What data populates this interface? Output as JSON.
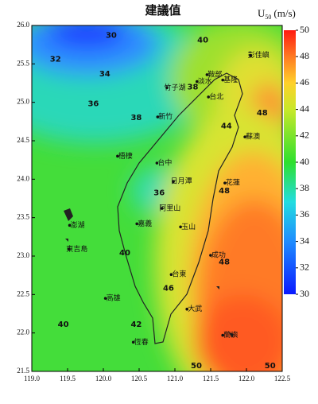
{
  "chart_data": {
    "type": "contour",
    "title": "建議值",
    "colorbar_label": {
      "main": "U",
      "sub": "50",
      "unit": "(m/s)"
    },
    "xlim": [
      119.0,
      122.5
    ],
    "xticks": [
      {
        "value": 119.0,
        "label": "119.0"
      },
      {
        "value": 119.5,
        "label": "119.5"
      },
      {
        "value": 120.0,
        "label": "120.0"
      },
      {
        "value": 120.5,
        "label": "120.5"
      },
      {
        "value": 121.0,
        "label": "121.0"
      },
      {
        "value": 121.5,
        "label": "121.5"
      },
      {
        "value": 122.0,
        "label": "122.0"
      },
      {
        "value": 122.5,
        "label": "122.5"
      }
    ],
    "ylim": [
      21.5,
      26.0
    ],
    "yticks": [
      {
        "value": 21.5,
        "label": "21.5"
      },
      {
        "value": 22.0,
        "label": "22.0"
      },
      {
        "value": 22.5,
        "label": "22.5"
      },
      {
        "value": 23.0,
        "label": "23.0"
      },
      {
        "value": 23.5,
        "label": "23.5"
      },
      {
        "value": 24.0,
        "label": "24.0"
      },
      {
        "value": 24.5,
        "label": "24.5"
      },
      {
        "value": 25.0,
        "label": "25.0"
      },
      {
        "value": 25.5,
        "label": "25.5"
      },
      {
        "value": 26.0,
        "label": "26.0"
      }
    ],
    "zlim": [
      30,
      50
    ],
    "zticks": [
      30,
      32,
      34,
      36,
      38,
      40,
      42,
      44,
      46,
      48,
      50
    ],
    "contour_labels": [
      {
        "x": 120.11,
        "y": 25.87,
        "value": 30
      },
      {
        "x": 119.33,
        "y": 25.56,
        "value": 32
      },
      {
        "x": 120.02,
        "y": 25.37,
        "value": 34
      },
      {
        "x": 119.86,
        "y": 24.98,
        "value": 36
      },
      {
        "x": 121.39,
        "y": 25.81,
        "value": 40
      },
      {
        "x": 120.46,
        "y": 24.8,
        "value": 38
      },
      {
        "x": 121.25,
        "y": 25.2,
        "value": 38
      },
      {
        "x": 121.72,
        "y": 24.69,
        "value": 44
      },
      {
        "x": 122.22,
        "y": 24.86,
        "value": 48
      },
      {
        "x": 120.78,
        "y": 23.82,
        "value": 36
      },
      {
        "x": 121.69,
        "y": 23.85,
        "value": 48
      },
      {
        "x": 120.3,
        "y": 23.04,
        "value": 40
      },
      {
        "x": 121.69,
        "y": 22.92,
        "value": 48
      },
      {
        "x": 120.91,
        "y": 22.58,
        "value": 46
      },
      {
        "x": 120.46,
        "y": 22.11,
        "value": 42
      },
      {
        "x": 119.44,
        "y": 22.11,
        "value": 40
      },
      {
        "x": 121.3,
        "y": 21.57,
        "value": 50
      },
      {
        "x": 122.33,
        "y": 21.57,
        "value": 50
      }
    ],
    "places": [
      {
        "x": 122.17,
        "y": 25.61,
        "name": "彭佳嶼"
      },
      {
        "x": 121.56,
        "y": 25.36,
        "name": "鞍部"
      },
      {
        "x": 121.0,
        "y": 25.19,
        "name": "竹子湖"
      },
      {
        "x": 121.42,
        "y": 25.27,
        "name": "淡水"
      },
      {
        "x": 121.78,
        "y": 25.29,
        "name": "基隆"
      },
      {
        "x": 121.58,
        "y": 25.07,
        "name": "台北"
      },
      {
        "x": 120.87,
        "y": 24.81,
        "name": "新竹"
      },
      {
        "x": 122.09,
        "y": 24.55,
        "name": "蘇澳"
      },
      {
        "x": 120.31,
        "y": 24.3,
        "name": "梧棲"
      },
      {
        "x": 120.86,
        "y": 24.21,
        "name": "台中"
      },
      {
        "x": 121.09,
        "y": 23.97,
        "name": "日月潭"
      },
      {
        "x": 120.93,
        "y": 23.62,
        "name": "阿里山"
      },
      {
        "x": 121.19,
        "y": 23.38,
        "name": "玉山"
      },
      {
        "x": 120.58,
        "y": 23.42,
        "name": "嘉義"
      },
      {
        "x": 121.81,
        "y": 23.95,
        "name": "花蓮"
      },
      {
        "x": 119.64,
        "y": 23.4,
        "name": "澎湖"
      },
      {
        "x": 119.63,
        "y": 23.09,
        "name": "東吉島"
      },
      {
        "x": 121.61,
        "y": 23.01,
        "name": "成功"
      },
      {
        "x": 121.06,
        "y": 22.76,
        "name": "台東"
      },
      {
        "x": 120.14,
        "y": 22.45,
        "name": "高雄"
      },
      {
        "x": 121.28,
        "y": 22.31,
        "name": "大武"
      },
      {
        "x": 121.78,
        "y": 21.97,
        "name": "蘭嶼"
      },
      {
        "x": 120.53,
        "y": 21.88,
        "name": "恆春"
      }
    ]
  }
}
